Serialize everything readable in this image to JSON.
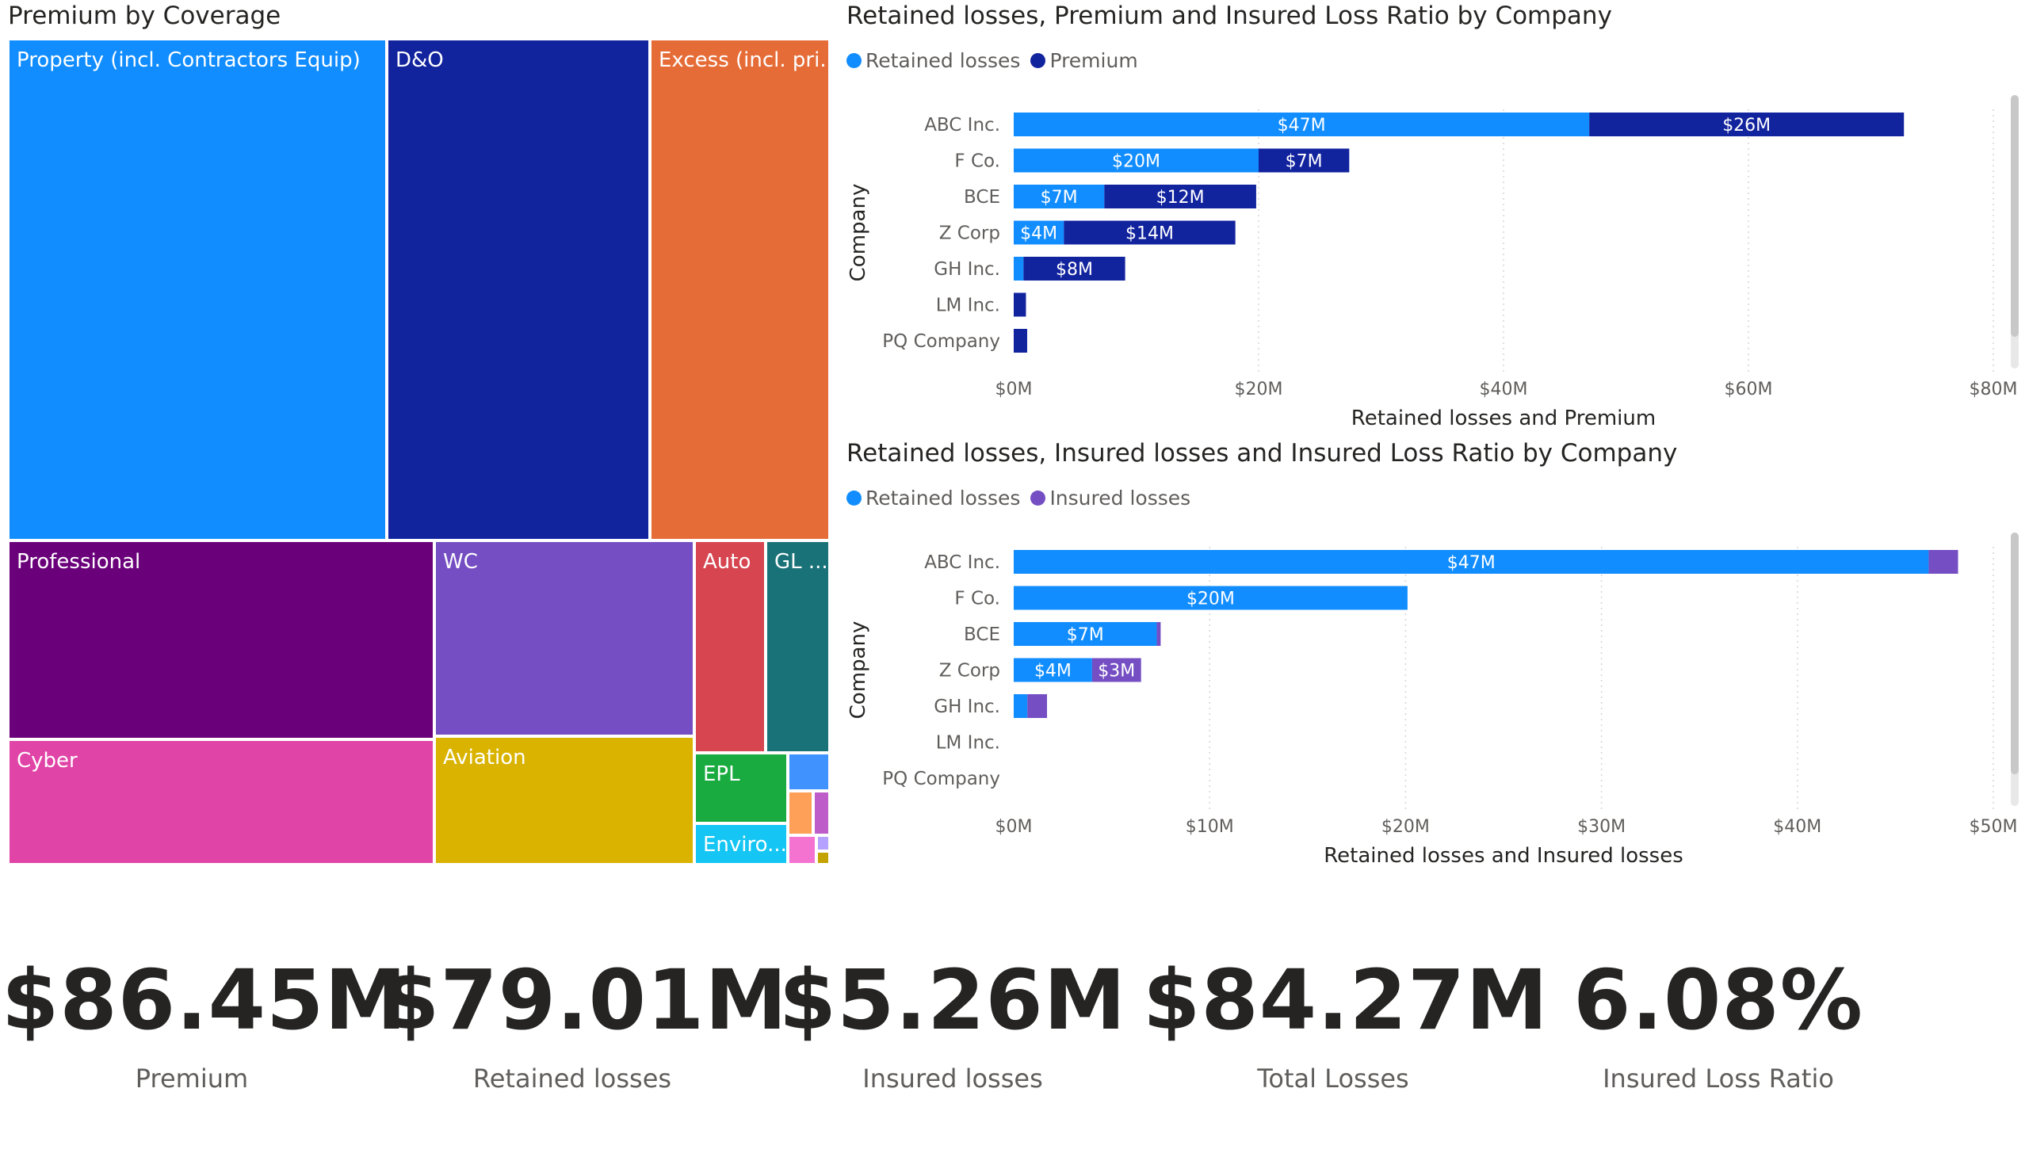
{
  "treemap": {
    "title": "Premium by Coverage",
    "tiles": [
      {
        "label": "Property (incl. Contractors Equip)",
        "color": "#118DFF"
      },
      {
        "label": "D&O",
        "color": "#12239E"
      },
      {
        "label": "Excess (incl. pri...",
        "color": "#E66C37"
      },
      {
        "label": "Professional",
        "color": "#6B007B"
      },
      {
        "label": "WC",
        "color": "#744EC2"
      },
      {
        "label": "Auto",
        "color": "#D64550"
      },
      {
        "label": "GL ...",
        "color": "#197278"
      },
      {
        "label": "Cyber",
        "color": "#E044A7"
      },
      {
        "label": "Aviation",
        "color": "#D9B300"
      },
      {
        "label": "EPL",
        "color": "#1AAB40"
      },
      {
        "label": "Enviro...",
        "color": "#15C6F4"
      },
      {
        "label": "",
        "color": "#4092FF"
      },
      {
        "label": "",
        "color": "#FFA058"
      },
      {
        "label": "",
        "color": "#BE5DC9"
      },
      {
        "label": "",
        "color": "#F472D0"
      },
      {
        "label": "",
        "color": "#B5A1FF"
      },
      {
        "label": "",
        "color": "#C4A200"
      }
    ]
  },
  "chart_data": [
    {
      "type": "bar",
      "orientation": "horizontal",
      "stacked": true,
      "title": "Retained losses, Premium and Insured Loss Ratio by Company",
      "categories": [
        "ABC Inc.",
        "F Co.",
        "BCE",
        "Z Corp",
        "GH Inc.",
        "LM Inc.",
        "PQ Company"
      ],
      "series": [
        {
          "name": "Retained losses",
          "color": "#118DFF",
          "values": [
            47,
            20,
            7.4,
            4.1,
            0.8,
            0,
            0
          ],
          "labels": [
            "$47M",
            "$20M",
            "$7M",
            "$4M",
            "",
            "",
            ""
          ]
        },
        {
          "name": "Premium",
          "color": "#12239E",
          "values": [
            25.7,
            7.4,
            12.4,
            14,
            8.3,
            1,
            1.1
          ],
          "labels": [
            "$26M",
            "$7M",
            "$12M",
            "$14M",
            "$8M",
            "",
            ""
          ]
        }
      ],
      "xlabel": "Retained losses and Premium",
      "ylabel": "Company",
      "xlim": [
        0,
        80
      ],
      "xticks": [
        "$0M",
        "$20M",
        "$40M",
        "$60M",
        "$80M"
      ],
      "legend_position": "top-left",
      "grid": true
    },
    {
      "type": "bar",
      "orientation": "horizontal",
      "stacked": true,
      "title": "Retained losses, Insured losses and Insured Loss Ratio by Company",
      "categories": [
        "ABC Inc.",
        "F Co.",
        "BCE",
        "Z Corp",
        "GH Inc.",
        "LM Inc.",
        "PQ Company"
      ],
      "series": [
        {
          "name": "Retained losses",
          "color": "#118DFF",
          "values": [
            46.7,
            20.1,
            7.3,
            4,
            0.7,
            0,
            0
          ],
          "labels": [
            "$47M",
            "$20M",
            "$7M",
            "$4M",
            "",
            "",
            ""
          ]
        },
        {
          "name": "Insured losses",
          "color": "#744EC2",
          "values": [
            1.5,
            0,
            0.2,
            2.5,
            1,
            0,
            0
          ],
          "labels": [
            "",
            "",
            "",
            "$3M",
            "",
            "",
            ""
          ]
        }
      ],
      "xlabel": "Retained losses and Insured losses",
      "ylabel": "Company",
      "xlim": [
        0,
        50
      ],
      "xticks": [
        "$0M",
        "$10M",
        "$20M",
        "$30M",
        "$40M",
        "$50M"
      ],
      "legend_position": "top-left",
      "grid": true
    }
  ],
  "cards": [
    {
      "value": "$86.45M",
      "label": "Premium"
    },
    {
      "value": "$79.01M",
      "label": "Retained losses"
    },
    {
      "value": "$5.26M",
      "label": "Insured losses"
    },
    {
      "value": "$84.27M",
      "label": "Total Losses"
    },
    {
      "value": "6.08%",
      "label": "Insured Loss Ratio"
    }
  ]
}
